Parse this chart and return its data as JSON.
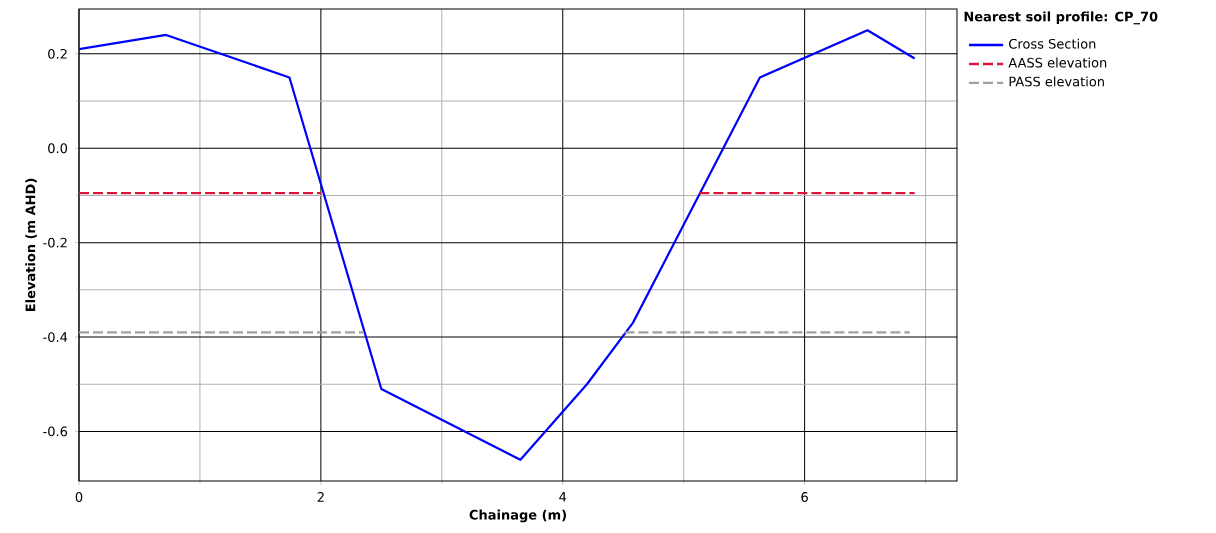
{
  "chart_data": {
    "type": "line",
    "xlabel": "Chainage (m)",
    "ylabel": "Elevation (m AHD)",
    "legend_title": "Nearest soil profile: CP_70",
    "series": [
      {
        "name": "Cross Section",
        "color": "#0000ff",
        "line_style": "solid",
        "x": [
          0,
          0.72,
          1.74,
          2.5,
          3.65,
          4.2,
          4.58,
          5.63,
          6.52,
          6.91
        ],
        "values": [
          0.21,
          0.24,
          0.15,
          -0.51,
          -0.66,
          -0.5,
          -0.37,
          0.15,
          0.25,
          0.19
        ]
      },
      {
        "name": "AASS elevation",
        "color": "#dc143c",
        "line_style": "dashed",
        "x": [
          0,
          2.0,
          3.5,
          5.13,
          6.91
        ],
        "values": [
          -0.095,
          -0.095,
          null,
          -0.095,
          -0.095
        ]
      },
      {
        "name": "PASS elevation",
        "color": "#a0a0a0",
        "line_style": "dashed",
        "x": [
          0,
          2.35,
          3.5,
          4.51,
          6.87
        ],
        "values": [
          -0.39,
          -0.39,
          null,
          -0.39,
          -0.39
        ]
      }
    ],
    "xlim": [
      0,
      7.26
    ],
    "ylim": [
      -0.705,
      0.295
    ],
    "xticks": [
      0,
      {
        "value": 1,
        "label": null
      },
      2,
      {
        "value": 3,
        "label": null
      },
      4,
      {
        "value": 5,
        "label": null
      },
      6,
      {
        "value": 7,
        "label": null
      }
    ],
    "yticks": [
      -0.6,
      {
        "value": -0.5,
        "label": null
      },
      -0.4,
      {
        "value": -0.3,
        "label": null
      },
      -0.2,
      {
        "value": -0.1,
        "label": null
      },
      {
        "value": 0,
        "label": "0.0"
      },
      {
        "value": 0.1,
        "label": null
      },
      0.2
    ],
    "grid": true,
    "legend": "top right",
    "marker": "none"
  }
}
